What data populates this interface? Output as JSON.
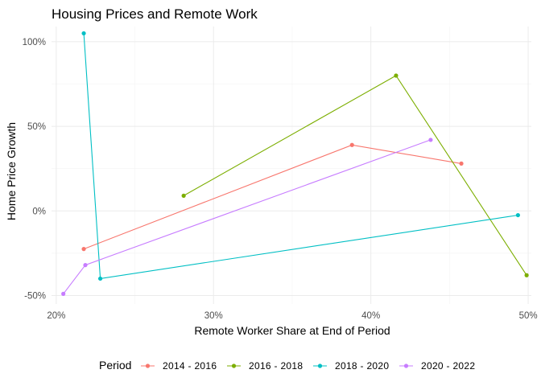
{
  "chart_data": {
    "type": "line",
    "title": "Housing Prices and Remote Work",
    "xlabel": "Remote Worker Share at End of Period",
    "ylabel": "Home Price Growth",
    "xlim": [
      0.197,
      0.502
    ],
    "ylim": [
      -0.55,
      1.09
    ],
    "xticks": [
      0.2,
      0.3,
      0.4,
      0.5
    ],
    "xtick_labels": [
      "20%",
      "30%",
      "40%",
      "50%"
    ],
    "yticks": [
      -0.5,
      0,
      0.5,
      1.0
    ],
    "ytick_labels": [
      "-50%",
      "0%",
      "50%",
      "100%"
    ],
    "grid": true,
    "legend": {
      "title": "Period",
      "position": "bottom"
    },
    "series": [
      {
        "name": "2014 - 2016",
        "color": "#F8766D",
        "x": [
          0.2175,
          0.388,
          0.4575
        ],
        "y": [
          -0.225,
          0.39,
          0.28
        ]
      },
      {
        "name": "2016 - 2018",
        "color": "#7CAE00",
        "x": [
          0.281,
          0.416,
          0.499
        ],
        "y": [
          0.09,
          0.8,
          -0.38
        ]
      },
      {
        "name": "2018 - 2020",
        "color": "#00BFC4",
        "x": [
          0.2175,
          0.228,
          0.4935
        ],
        "y": [
          1.05,
          -0.4,
          -0.025
        ]
      },
      {
        "name": "2020 - 2022",
        "color": "#C77CFF",
        "x": [
          0.2045,
          0.2185,
          0.438
        ],
        "y": [
          -0.49,
          -0.32,
          0.42
        ]
      }
    ]
  }
}
